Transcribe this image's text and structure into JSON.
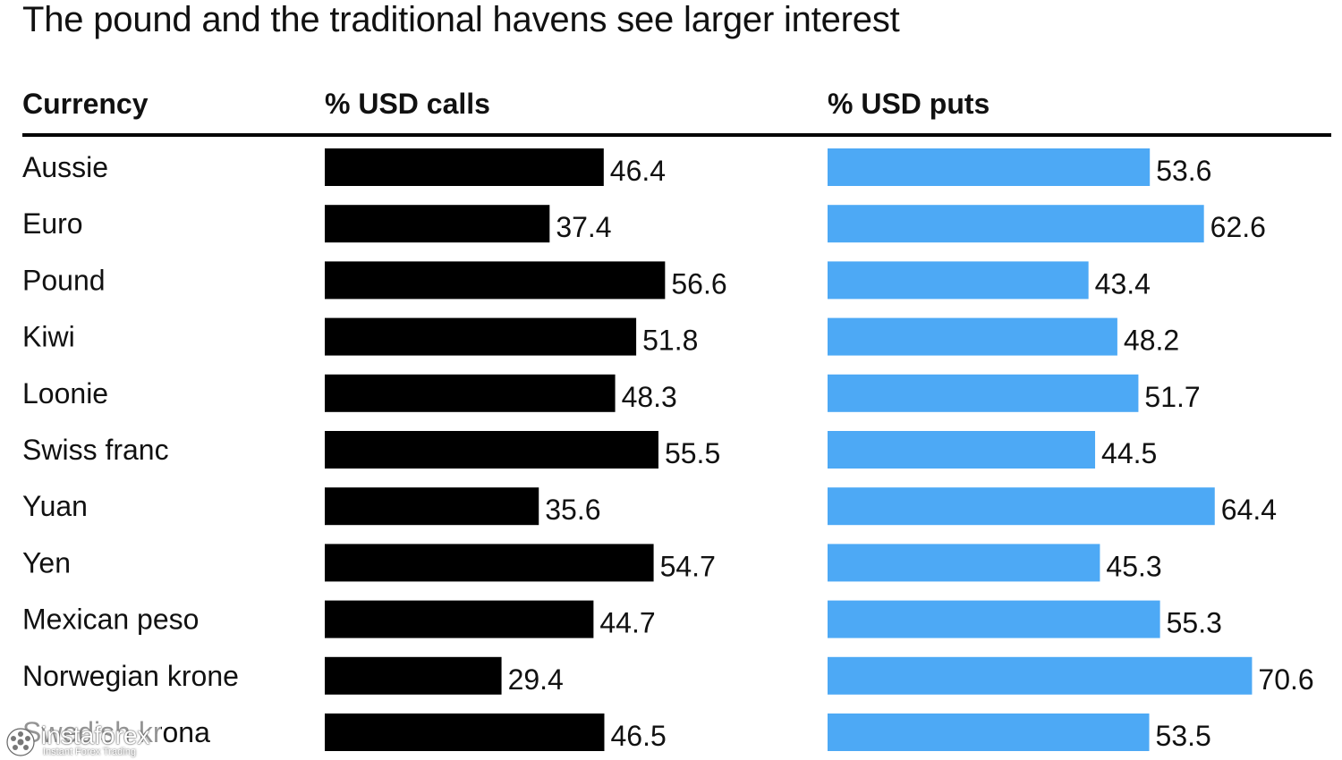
{
  "chart_data": {
    "type": "bar",
    "title": "The pound and the traditional havens see larger interest",
    "column_headers": {
      "category": "Currency",
      "calls": "% USD calls",
      "puts": "% USD puts"
    },
    "categories": [
      "Aussie",
      "Euro",
      "Pound",
      "Kiwi",
      "Loonie",
      "Swiss franc",
      "Yuan",
      "Yen",
      "Mexican peso",
      "Norwegian krone",
      "Swedish krona"
    ],
    "series": [
      {
        "name": "% USD calls",
        "values": [
          46.4,
          37.4,
          56.6,
          51.8,
          48.3,
          55.5,
          35.6,
          54.7,
          44.7,
          29.4,
          46.5
        ],
        "labels": [
          "46.4",
          "37.4",
          "56.6",
          "51.8",
          "48.3",
          "55.5",
          "35.6",
          "54.7",
          "44.7",
          "29.4",
          "46.5"
        ],
        "color": "#000000"
      },
      {
        "name": "% USD puts",
        "values": [
          53.6,
          62.6,
          43.4,
          48.2,
          51.7,
          44.5,
          64.4,
          45.3,
          55.3,
          70.6,
          53.5
        ],
        "labels": [
          "53.6",
          "62.6",
          "43.4",
          "48.2",
          "51.7",
          "44.5",
          "64.4",
          "45.3",
          "55.3",
          "70.6",
          "53.5"
        ],
        "color": "#4da9f5"
      }
    ],
    "xlim": [
      0,
      100
    ],
    "grid": false,
    "legend": "none"
  },
  "watermark": {
    "brand": "instaforex",
    "tagline": "Instant Forex Trading"
  }
}
